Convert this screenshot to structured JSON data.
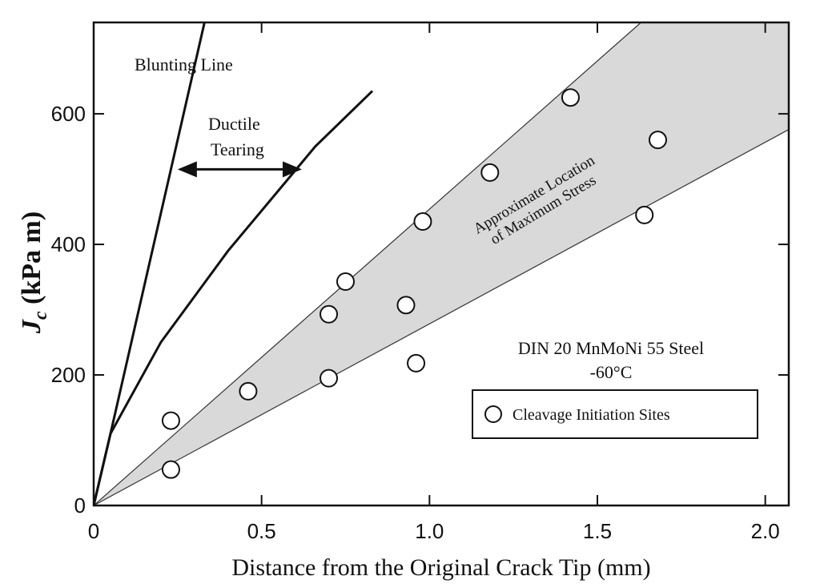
{
  "chart_data": {
    "type": "scatter",
    "xlabel": "Distance from the Original Crack Tip (mm)",
    "ylabel": "(kPa m)",
    "ylabel_symbol": "J",
    "ylabel_subscript": "c",
    "xlim": [
      0,
      2.07
    ],
    "ylim": [
      0,
      740
    ],
    "x_ticks": [
      0,
      0.5,
      1.0,
      1.5,
      2.0
    ],
    "x_tick_labels": [
      "0",
      "0.5",
      "1.0",
      "1.5",
      "2.0"
    ],
    "y_ticks": [
      0,
      200,
      400,
      600
    ],
    "y_tick_labels": [
      "0",
      "200",
      "400",
      "600"
    ],
    "grid": false,
    "series": [
      {
        "name": "Cleavage Initiation Sites",
        "marker": "open-circle",
        "x": [
          0.23,
          0.23,
          0.46,
          0.7,
          0.7,
          0.75,
          0.93,
          0.96,
          0.98,
          1.18,
          1.42,
          1.64,
          1.68
        ],
        "y": [
          55,
          130,
          175,
          195,
          293,
          343,
          307,
          218,
          435,
          510,
          625,
          445,
          560
        ]
      }
    ],
    "lines": [
      {
        "label": "Blunting Line",
        "x": [
          0,
          0.05,
          0.33
        ],
        "y": [
          0,
          110,
          740
        ]
      },
      {
        "label": "Ductile Tearing",
        "x": [
          0,
          0.05,
          0.2,
          0.4,
          0.66,
          0.83
        ],
        "y": [
          0,
          110,
          250,
          390,
          550,
          635
        ]
      }
    ],
    "band": {
      "label": "Approximate Location of Maximum Stress",
      "lower": {
        "x": [
          0,
          2.07
        ],
        "y": [
          0,
          576
        ]
      },
      "upper": {
        "x": [
          0,
          1.63,
          2.07
        ],
        "y": [
          0,
          740,
          740
        ]
      },
      "fill": "#d9d9d9"
    },
    "arrow": {
      "x1": 0.25,
      "x2": 0.62,
      "y": 515
    },
    "annotations": {
      "blunting": "Blunting Line",
      "ductile_1": "Ductile",
      "ductile_2": "Tearing",
      "band_1": "Approximate Location",
      "band_2": "of Maximum Stress",
      "material_1": "DIN 20 MnMoNi 55 Steel",
      "material_2": "-60°C"
    },
    "legend": {
      "position": "lower-right",
      "entries": [
        "Cleavage Initiation Sites"
      ]
    }
  }
}
